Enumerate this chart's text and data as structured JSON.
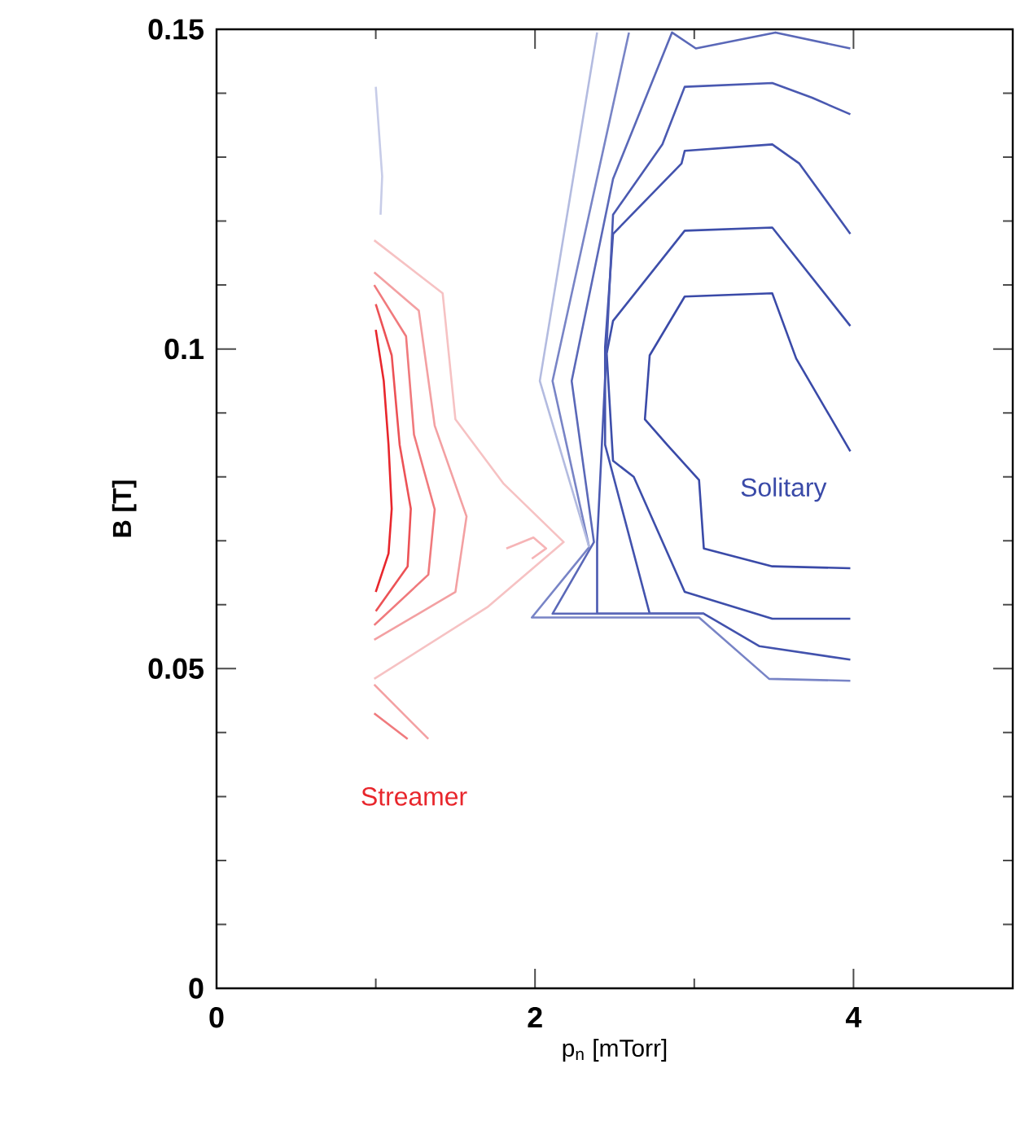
{
  "chart_data": {
    "type": "line",
    "xlabel": "p$_{n}$ [mTorr]",
    "ylabel": "B [T]",
    "xlim": [
      0,
      5
    ],
    "ylim": [
      0,
      0.15
    ],
    "xticks": [
      0,
      2,
      4
    ],
    "yticks": [
      0,
      0.05,
      0.1,
      0.15
    ],
    "marker": "none",
    "series": [
      {
        "color": "#3a4aa8",
        "x": [
          3.98,
          3.64,
          3.49,
          2.94,
          2.72,
          2.69,
          2.83,
          3.03,
          3.06,
          3.49,
          3.98
        ],
        "values": [
          0.084,
          0.0985,
          0.1087,
          0.1082,
          0.099,
          0.089,
          0.085,
          0.0795,
          0.0688,
          0.066,
          0.0657
        ]
      },
      {
        "color": "#3d4eaa",
        "x": [
          3.98,
          3.49,
          2.94,
          2.49,
          2.45,
          2.49,
          2.62,
          2.94,
          3.49,
          3.98
        ],
        "values": [
          0.1036,
          0.119,
          0.1185,
          0.1044,
          0.0993,
          0.0825,
          0.08,
          0.062,
          0.0578,
          0.0578
        ]
      },
      {
        "color": "#4252ad",
        "x": [
          3.98,
          3.66,
          3.49,
          2.94,
          2.92,
          2.49,
          2.44,
          2.44,
          2.72,
          3.06,
          3.41,
          3.98
        ],
        "values": [
          0.118,
          0.129,
          0.132,
          0.131,
          0.129,
          0.118,
          0.1003,
          0.085,
          0.0586,
          0.0586,
          0.0535,
          0.0514
        ]
      },
      {
        "color": "#4a59b1",
        "x": [
          3.98,
          3.74,
          3.49,
          2.94,
          2.8,
          2.49,
          2.39,
          2.39,
          3.06
        ],
        "values": [
          0.1367,
          0.1393,
          0.1416,
          0.141,
          0.132,
          0.121,
          0.0698,
          0.0586,
          0.0586
        ]
      },
      {
        "color": "#5a68b8",
        "x": [
          3.98,
          3.51,
          3.01,
          2.86,
          2.49,
          2.23,
          2.37,
          2.11,
          3.06
        ],
        "values": [
          0.147,
          0.1495,
          0.147,
          0.1495,
          0.1266,
          0.095,
          0.0698,
          0.0586,
          0.0586
        ]
      },
      {
        "color": "#7884c6",
        "x": [
          2.59,
          2.11,
          2.34,
          1.98,
          3.03,
          3.47,
          3.98
        ],
        "values": [
          0.1495,
          0.095,
          0.069,
          0.058,
          0.058,
          0.0484,
          0.0481
        ]
      },
      {
        "color": "#b3bbe0",
        "x": [
          2.39,
          2.03,
          2.34
        ],
        "values": [
          0.1495,
          0.095,
          0.069
        ]
      },
      {
        "color": "#c7cce8",
        "x": [
          1.0,
          1.04,
          1.03
        ],
        "values": [
          0.141,
          0.127,
          0.121
        ]
      },
      {
        "color": "#f6c2c3",
        "x": [
          0.99,
          1.42,
          1.5,
          1.8,
          2.18,
          1.7,
          0.99
        ],
        "values": [
          0.117,
          0.1087,
          0.089,
          0.079,
          0.0698,
          0.0596,
          0.0484
        ]
      },
      {
        "color": "#f3a0a2",
        "x": [
          0.99,
          1.27,
          1.37,
          1.57,
          1.5,
          0.99
        ],
        "values": [
          0.112,
          0.106,
          0.088,
          0.0738,
          0.062,
          0.0545
        ]
      },
      {
        "color": "#f07a7d",
        "x": [
          0.99,
          1.19,
          1.24,
          1.37,
          1.33,
          0.99
        ],
        "values": [
          0.11,
          0.102,
          0.0866,
          0.0749,
          0.0647,
          0.0568
        ]
      },
      {
        "color": "#ec5256",
        "x": [
          1.0,
          1.1,
          1.15,
          1.22,
          1.2,
          1.0
        ],
        "values": [
          0.107,
          0.099,
          0.085,
          0.075,
          0.066,
          0.059
        ]
      },
      {
        "color": "#e8262c",
        "x": [
          1.0,
          1.05,
          1.08,
          1.1,
          1.08,
          1.0
        ],
        "values": [
          0.103,
          0.095,
          0.085,
          0.075,
          0.068,
          0.062
        ]
      },
      {
        "color": "#f6b4b6",
        "x": [
          1.82,
          1.99,
          2.07,
          1.98
        ],
        "values": [
          0.0688,
          0.0705,
          0.0688,
          0.0672
        ]
      },
      {
        "color": "#f3a0a2",
        "x": [
          0.99,
          1.33
        ],
        "values": [
          0.0475,
          0.039
        ]
      },
      {
        "color": "#f07a7d",
        "x": [
          0.99,
          1.2
        ],
        "values": [
          0.043,
          0.039
        ]
      }
    ],
    "annotations": [
      "Streamer",
      "Solitary"
    ]
  }
}
